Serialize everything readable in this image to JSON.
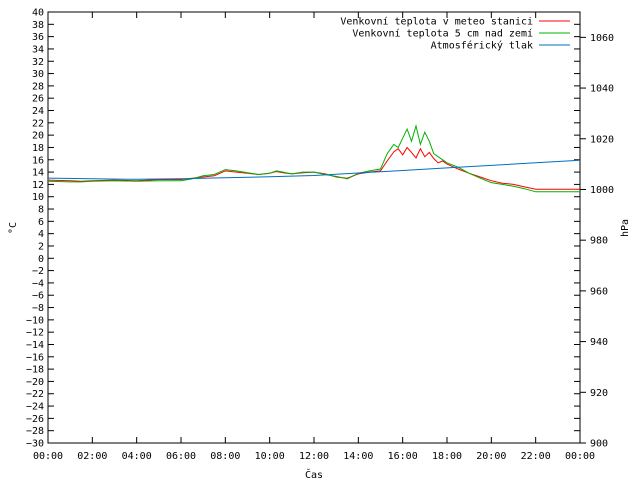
{
  "chart_data": {
    "type": "line",
    "xlabel": "Čas",
    "ylabel_left": "°C",
    "ylabel_right": "hPa",
    "x_ticks": [
      "00:00",
      "02:00",
      "04:00",
      "06:00",
      "08:00",
      "10:00",
      "12:00",
      "14:00",
      "16:00",
      "18:00",
      "20:00",
      "22:00",
      "00:00"
    ],
    "xlim_hours": [
      0,
      24
    ],
    "ylim_left": [
      -30,
      40
    ],
    "ylim_right": [
      900,
      1070
    ],
    "y_ticks_left": [
      40,
      38,
      36,
      34,
      32,
      30,
      28,
      26,
      24,
      22,
      20,
      18,
      16,
      14,
      12,
      10,
      8,
      6,
      4,
      2,
      0,
      -2,
      -4,
      -6,
      -8,
      -10,
      -12,
      -14,
      -16,
      -18,
      -20,
      -22,
      -24,
      -26,
      -28,
      -30
    ],
    "y_ticks_right": [
      1060,
      1040,
      1020,
      1000,
      980,
      960,
      940,
      920,
      900
    ],
    "grid": false,
    "legend_position": "top-right",
    "series": [
      {
        "name": "Venkovní teplota v meteo stanici",
        "axis": "left",
        "color": "#ff0000",
        "x": [
          0,
          1,
          1.5,
          2,
          3,
          4,
          5,
          6,
          6.5,
          7,
          7.5,
          8,
          8.5,
          9,
          9.5,
          10,
          10.3,
          10.6,
          11,
          11.5,
          12,
          12.5,
          13,
          13.5,
          14,
          14.5,
          15,
          15.3,
          15.6,
          15.8,
          16,
          16.2,
          16.4,
          16.6,
          16.8,
          17,
          17.2,
          17.4,
          17.6,
          17.8,
          18,
          18.5,
          19,
          19.5,
          20,
          20.5,
          21,
          21.5,
          22,
          23,
          24
        ],
        "values": [
          12.7,
          12.6,
          12.5,
          12.6,
          12.7,
          12.6,
          12.8,
          12.8,
          13.0,
          13.2,
          13.4,
          14.2,
          14.0,
          13.8,
          13.6,
          13.8,
          14.1,
          13.9,
          13.7,
          13.9,
          14.0,
          13.7,
          13.2,
          13.0,
          13.7,
          14.0,
          14.2,
          15.8,
          17.3,
          17.8,
          16.8,
          18.0,
          17.2,
          16.3,
          17.8,
          16.5,
          17.2,
          16.2,
          15.5,
          15.8,
          15.3,
          14.5,
          13.8,
          13.2,
          12.6,
          12.2,
          12.0,
          11.6,
          11.2,
          11.2,
          11.2
        ]
      },
      {
        "name": "Venkovní teplota 5 cm nad zemí",
        "axis": "left",
        "color": "#00b000",
        "x": [
          0,
          1,
          1.5,
          2,
          3,
          4,
          5,
          6,
          6.5,
          7,
          7.5,
          8,
          8.5,
          9,
          9.5,
          10,
          10.3,
          10.6,
          11,
          11.5,
          12,
          12.5,
          13,
          13.5,
          14,
          14.5,
          15,
          15.3,
          15.6,
          15.8,
          16,
          16.2,
          16.4,
          16.6,
          16.8,
          17,
          17.2,
          17.4,
          17.6,
          17.8,
          18,
          18.5,
          19,
          19.5,
          20,
          20.5,
          21,
          21.5,
          22,
          23,
          24
        ],
        "values": [
          12.5,
          12.4,
          12.4,
          12.5,
          12.6,
          12.5,
          12.6,
          12.6,
          12.9,
          13.4,
          13.6,
          14.4,
          14.2,
          13.9,
          13.6,
          13.8,
          14.2,
          14.0,
          13.7,
          14.0,
          14.0,
          13.6,
          13.3,
          12.9,
          13.8,
          14.2,
          14.5,
          17.0,
          18.5,
          18.0,
          19.5,
          21.0,
          19.0,
          21.5,
          18.5,
          20.5,
          19.0,
          17.0,
          16.5,
          16.0,
          15.5,
          14.8,
          13.8,
          13.0,
          12.3,
          12.0,
          11.7,
          11.3,
          10.8,
          10.8,
          10.8
        ]
      },
      {
        "name": "Atmosférický tlak",
        "axis": "right",
        "color": "#0070c0",
        "x": [
          0,
          2,
          4,
          6,
          8,
          10,
          12,
          14,
          16,
          18,
          20,
          22,
          24
        ],
        "values": [
          1004.5,
          1004.2,
          1004.0,
          1004.2,
          1004.6,
          1005.0,
          1005.5,
          1006.5,
          1007.5,
          1008.5,
          1009.5,
          1010.5,
          1011.5
        ]
      }
    ]
  }
}
